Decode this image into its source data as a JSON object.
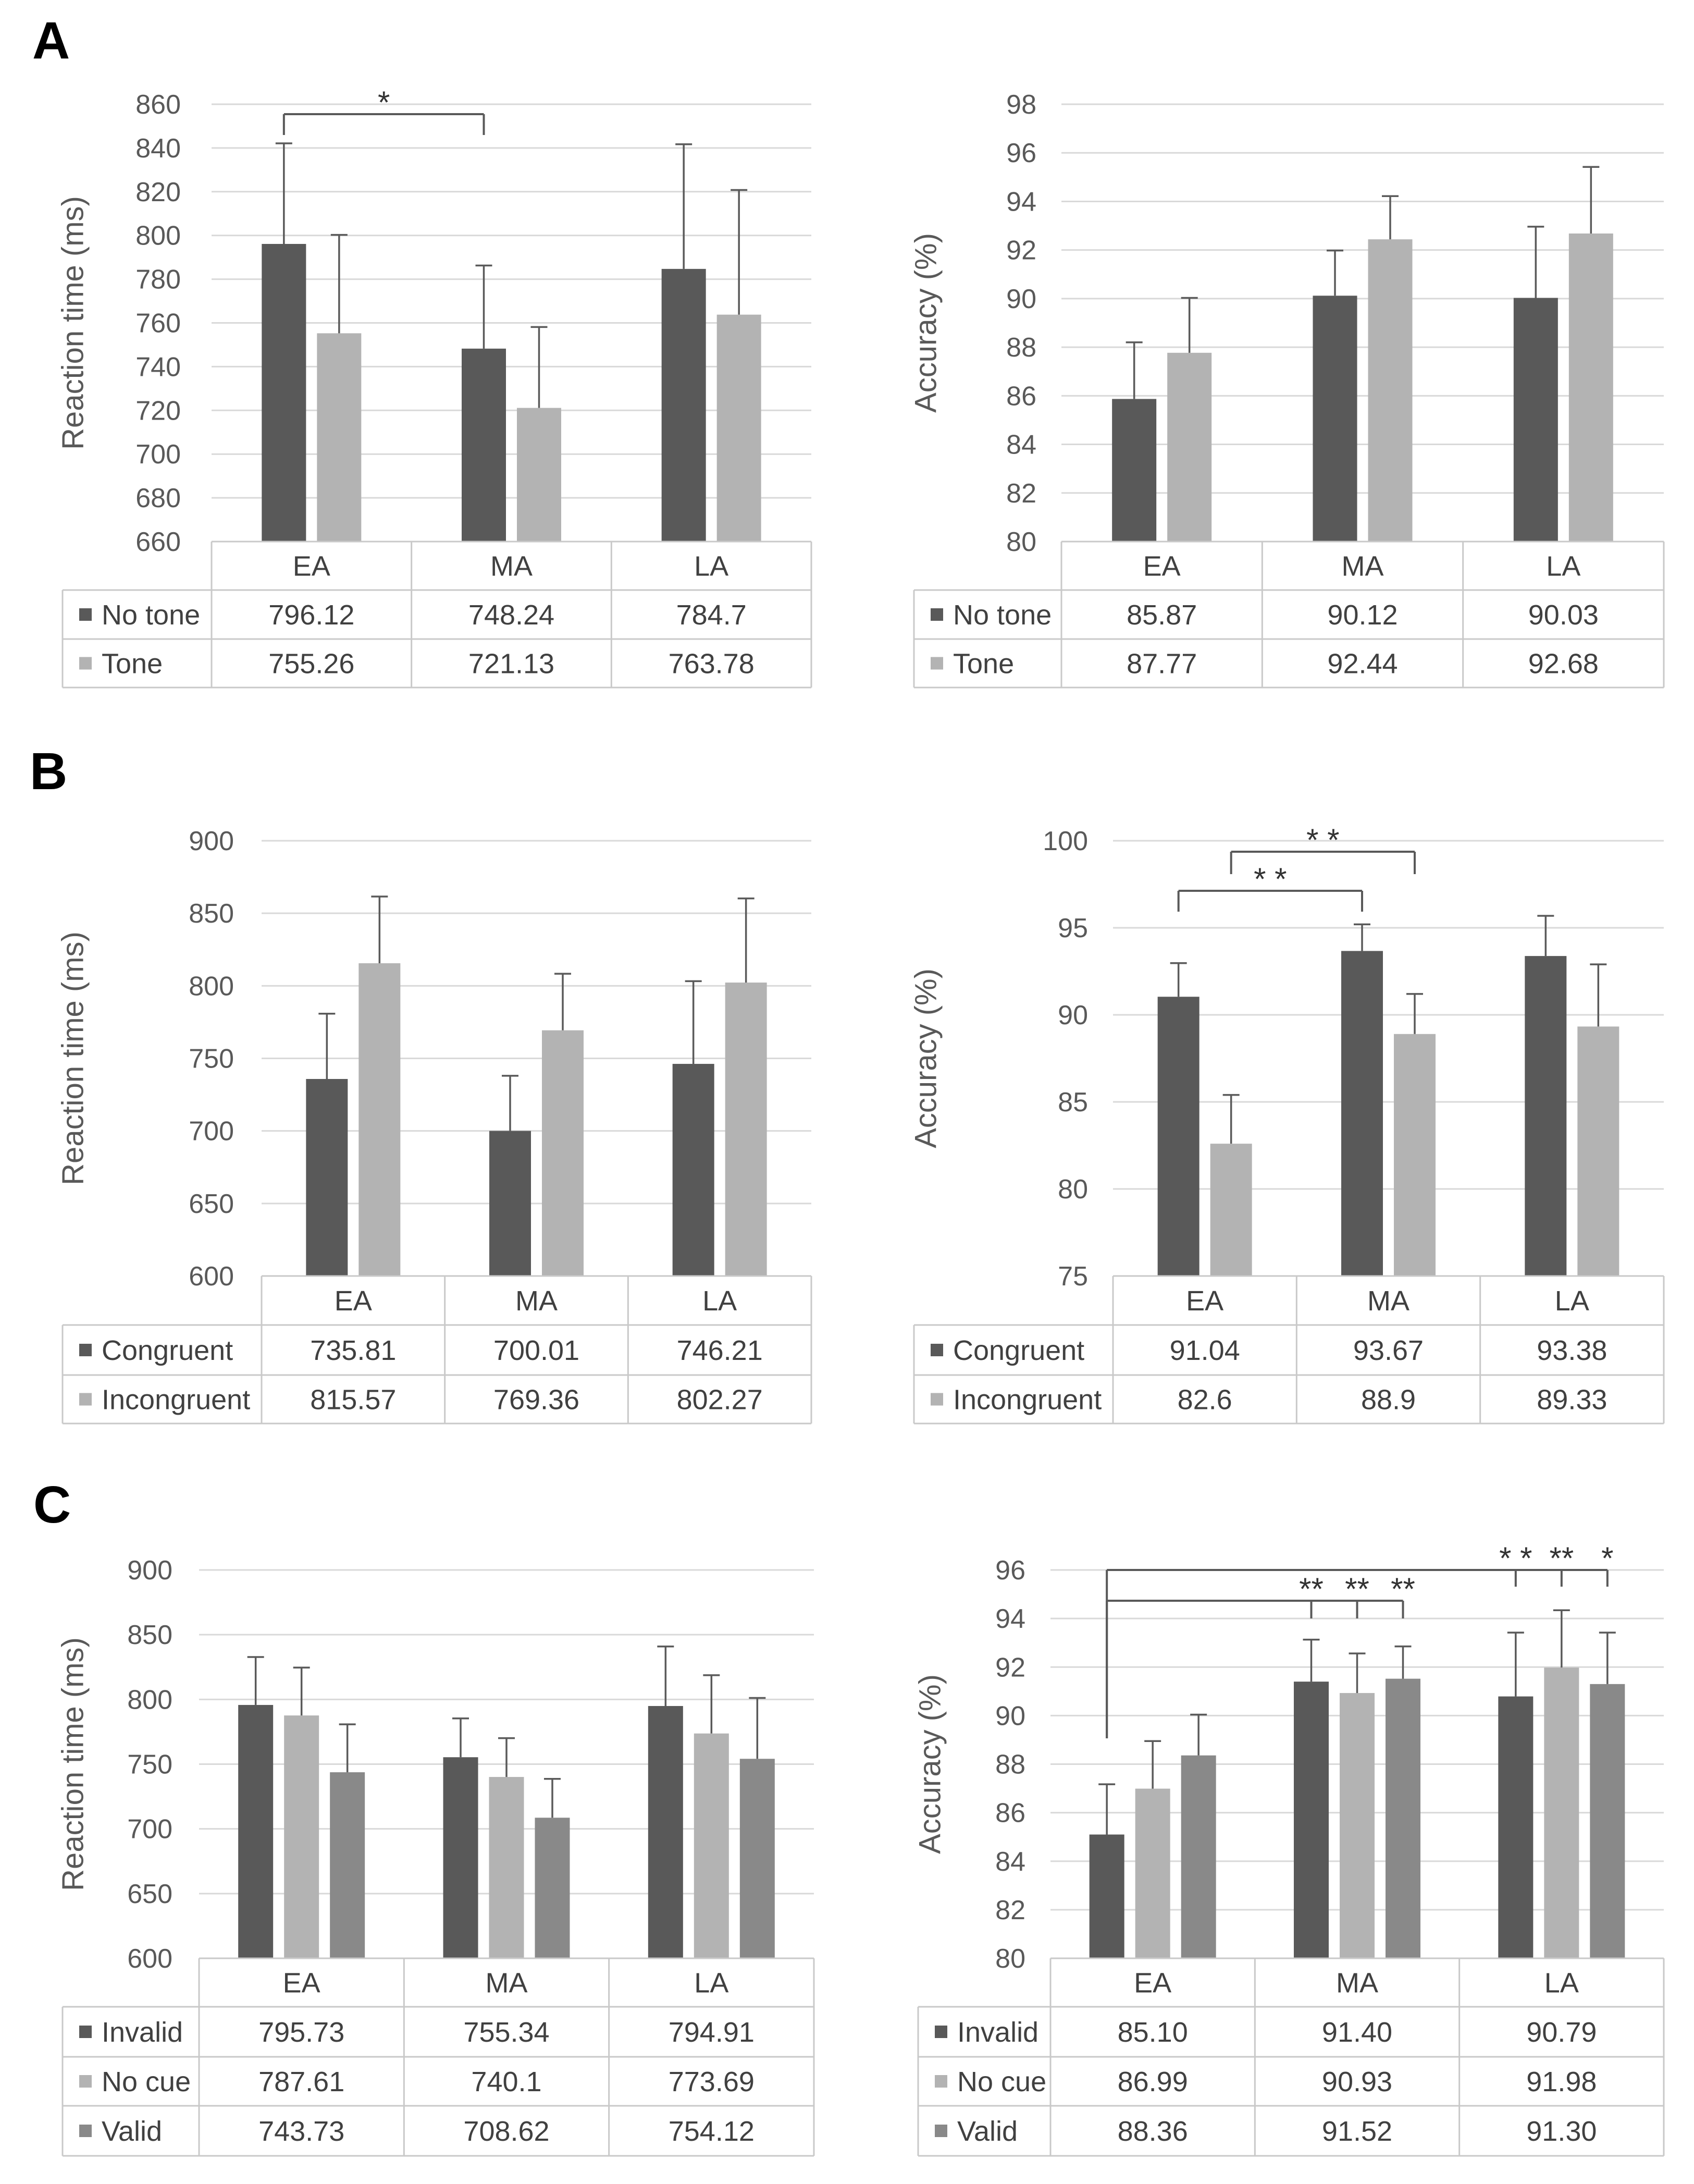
{
  "figure": {
    "panel_labels": [
      "A",
      "B",
      "C"
    ]
  },
  "chart_data": [
    {
      "type": "bar",
      "title": "",
      "xlabel": "",
      "ylabel": "Reaction time (ms)",
      "ylim": [
        660,
        860
      ],
      "yticks": [
        "660",
        "680",
        "700",
        "720",
        "740",
        "760",
        "780",
        "800",
        "820",
        "840",
        "860"
      ],
      "grid": true,
      "categories": [
        "EA",
        "MA",
        "LA"
      ],
      "series": [
        {
          "name": "No tone",
          "color": "#595959",
          "values": [
            796.12,
            748.24,
            784.7
          ],
          "labels": [
            "796.12",
            "748.24",
            "784.7"
          ],
          "error": [
            46,
            38,
            57
          ]
        },
        {
          "name": "Tone",
          "color": "#b3b3b3",
          "values": [
            755.26,
            721.13,
            763.78
          ],
          "labels": [
            "755.26",
            "721.13",
            "763.78"
          ],
          "error": [
            45,
            37,
            57
          ]
        }
      ],
      "significance": [
        {
          "from": {
            "category": 0,
            "series": 0
          },
          "to": [
            {
              "category": 1,
              "series": 0,
              "label": "*"
            }
          ]
        }
      ]
    },
    {
      "type": "bar",
      "title": "",
      "xlabel": "",
      "ylabel": "Accuracy (%)",
      "ylim": [
        80,
        98
      ],
      "yticks": [
        "80",
        "82",
        "84",
        "86",
        "88",
        "90",
        "92",
        "94",
        "96",
        "98"
      ],
      "grid": true,
      "categories": [
        "EA",
        "MA",
        "LA"
      ],
      "series": [
        {
          "name": "No tone",
          "color": "#595959",
          "values": [
            85.87,
            90.12,
            90.03
          ],
          "labels": [
            "85.87",
            "90.12",
            "90.03"
          ],
          "error": [
            2.33,
            1.86,
            2.93
          ]
        },
        {
          "name": "Tone",
          "color": "#b3b3b3",
          "values": [
            87.77,
            92.44,
            92.68
          ],
          "labels": [
            "87.77",
            "92.44",
            "92.68"
          ],
          "error": [
            2.26,
            1.78,
            2.74
          ]
        }
      ],
      "significance": []
    },
    {
      "type": "bar",
      "title": "",
      "xlabel": "",
      "ylabel": "Reaction time (ms)",
      "ylim": [
        600,
        900
      ],
      "yticks": [
        "600",
        "650",
        "700",
        "750",
        "800",
        "850",
        "900"
      ],
      "grid": true,
      "categories": [
        "EA",
        "MA",
        "LA"
      ],
      "series": [
        {
          "name": "Congruent",
          "color": "#595959",
          "values": [
            735.81,
            700.01,
            746.21
          ],
          "labels": [
            "735.81",
            "700.01",
            "746.21"
          ],
          "error": [
            45,
            38,
            57
          ]
        },
        {
          "name": "Incongruent",
          "color": "#b3b3b3",
          "values": [
            815.57,
            769.36,
            802.27
          ],
          "labels": [
            "815.57",
            "769.36",
            "802.27"
          ],
          "error": [
            46,
            39,
            58
          ]
        }
      ],
      "significance": []
    },
    {
      "type": "bar",
      "title": "",
      "xlabel": "",
      "ylabel": "Accuracy (%)",
      "ylim": [
        75,
        100
      ],
      "yticks": [
        "75",
        "80",
        "85",
        "90",
        "95",
        "100"
      ],
      "grid": true,
      "categories": [
        "EA",
        "MA",
        "LA"
      ],
      "series": [
        {
          "name": "Congruent",
          "color": "#595959",
          "values": [
            91.04,
            93.67,
            93.38
          ],
          "labels": [
            "91.04",
            "93.67",
            "93.38"
          ],
          "error": [
            1.93,
            1.53,
            2.31
          ]
        },
        {
          "name": "Incongruent",
          "color": "#b3b3b3",
          "values": [
            82.6,
            88.9,
            89.33
          ],
          "labels": [
            "82.6",
            "88.9",
            "89.33"
          ],
          "error": [
            2.8,
            2.3,
            3.57
          ]
        }
      ],
      "significance": [
        {
          "from": {
            "category": 0,
            "series": 1
          },
          "to": [
            {
              "category": 1,
              "series": 1,
              "label": "* *"
            }
          ]
        },
        {
          "from": {
            "category": 0,
            "series": 0
          },
          "to": [
            {
              "category": 1,
              "series": 0,
              "label": "* *"
            }
          ]
        }
      ]
    },
    {
      "type": "bar",
      "title": "",
      "xlabel": "",
      "ylabel": "Reaction time (ms)",
      "ylim": [
        600,
        900
      ],
      "yticks": [
        "600",
        "650",
        "700",
        "750",
        "800",
        "850",
        "900"
      ],
      "grid": true,
      "categories": [
        "EA",
        "MA",
        "LA"
      ],
      "series": [
        {
          "name": "Invalid",
          "color": "#595959",
          "values": [
            795.73,
            755.34,
            794.91
          ],
          "labels": [
            "795.73",
            "755.34",
            "794.91"
          ],
          "error": [
            37,
            30,
            46
          ]
        },
        {
          "name": "No cue",
          "color": "#b3b3b3",
          "values": [
            787.61,
            740.1,
            773.69
          ],
          "labels": [
            "787.61",
            "740.1",
            "773.69"
          ],
          "error": [
            37,
            30,
            45
          ]
        },
        {
          "name": "Valid",
          "color": "#898989",
          "values": [
            743.73,
            708.62,
            754.12
          ],
          "labels": [
            "743.73",
            "708.62",
            "754.12"
          ],
          "error": [
            37,
            30,
            47
          ]
        }
      ],
      "significance": []
    },
    {
      "type": "bar",
      "title": "",
      "xlabel": "",
      "ylabel": "Accuracy (%)",
      "ylim": [
        80,
        96
      ],
      "yticks": [
        "80",
        "82",
        "84",
        "86",
        "88",
        "90",
        "92",
        "94",
        "96"
      ],
      "grid": true,
      "categories": [
        "EA",
        "MA",
        "LA"
      ],
      "series": [
        {
          "name": "Invalid",
          "color": "#595959",
          "values": [
            85.1,
            91.4,
            90.79
          ],
          "labels": [
            "85.10",
            "91.40",
            "90.79"
          ],
          "error": [
            2.07,
            1.73,
            2.63
          ]
        },
        {
          "name": "No cue",
          "color": "#b3b3b3",
          "values": [
            86.99,
            90.93,
            91.98
          ],
          "labels": [
            "86.99",
            "90.93",
            "91.98"
          ],
          "error": [
            1.96,
            1.63,
            2.36
          ]
        },
        {
          "name": "Valid",
          "color": "#898989",
          "values": [
            88.36,
            91.52,
            91.3
          ],
          "labels": [
            "88.36",
            "91.52",
            "91.30"
          ],
          "error": [
            1.68,
            1.33,
            2.12
          ]
        }
      ],
      "significance": [
        {
          "from": {
            "category": 0,
            "series": 0
          },
          "to": [
            {
              "category": 1,
              "series": 0,
              "label": "**"
            },
            {
              "category": 1,
              "series": 1,
              "label": "**"
            },
            {
              "category": 1,
              "series": 2,
              "label": "**"
            }
          ]
        },
        {
          "from": {
            "category": 0,
            "series": 0
          },
          "to": [
            {
              "category": 2,
              "series": 0,
              "label": "* *"
            },
            {
              "category": 2,
              "series": 1,
              "label": "**"
            },
            {
              "category": 2,
              "series": 2,
              "label": "*"
            }
          ]
        }
      ]
    }
  ]
}
